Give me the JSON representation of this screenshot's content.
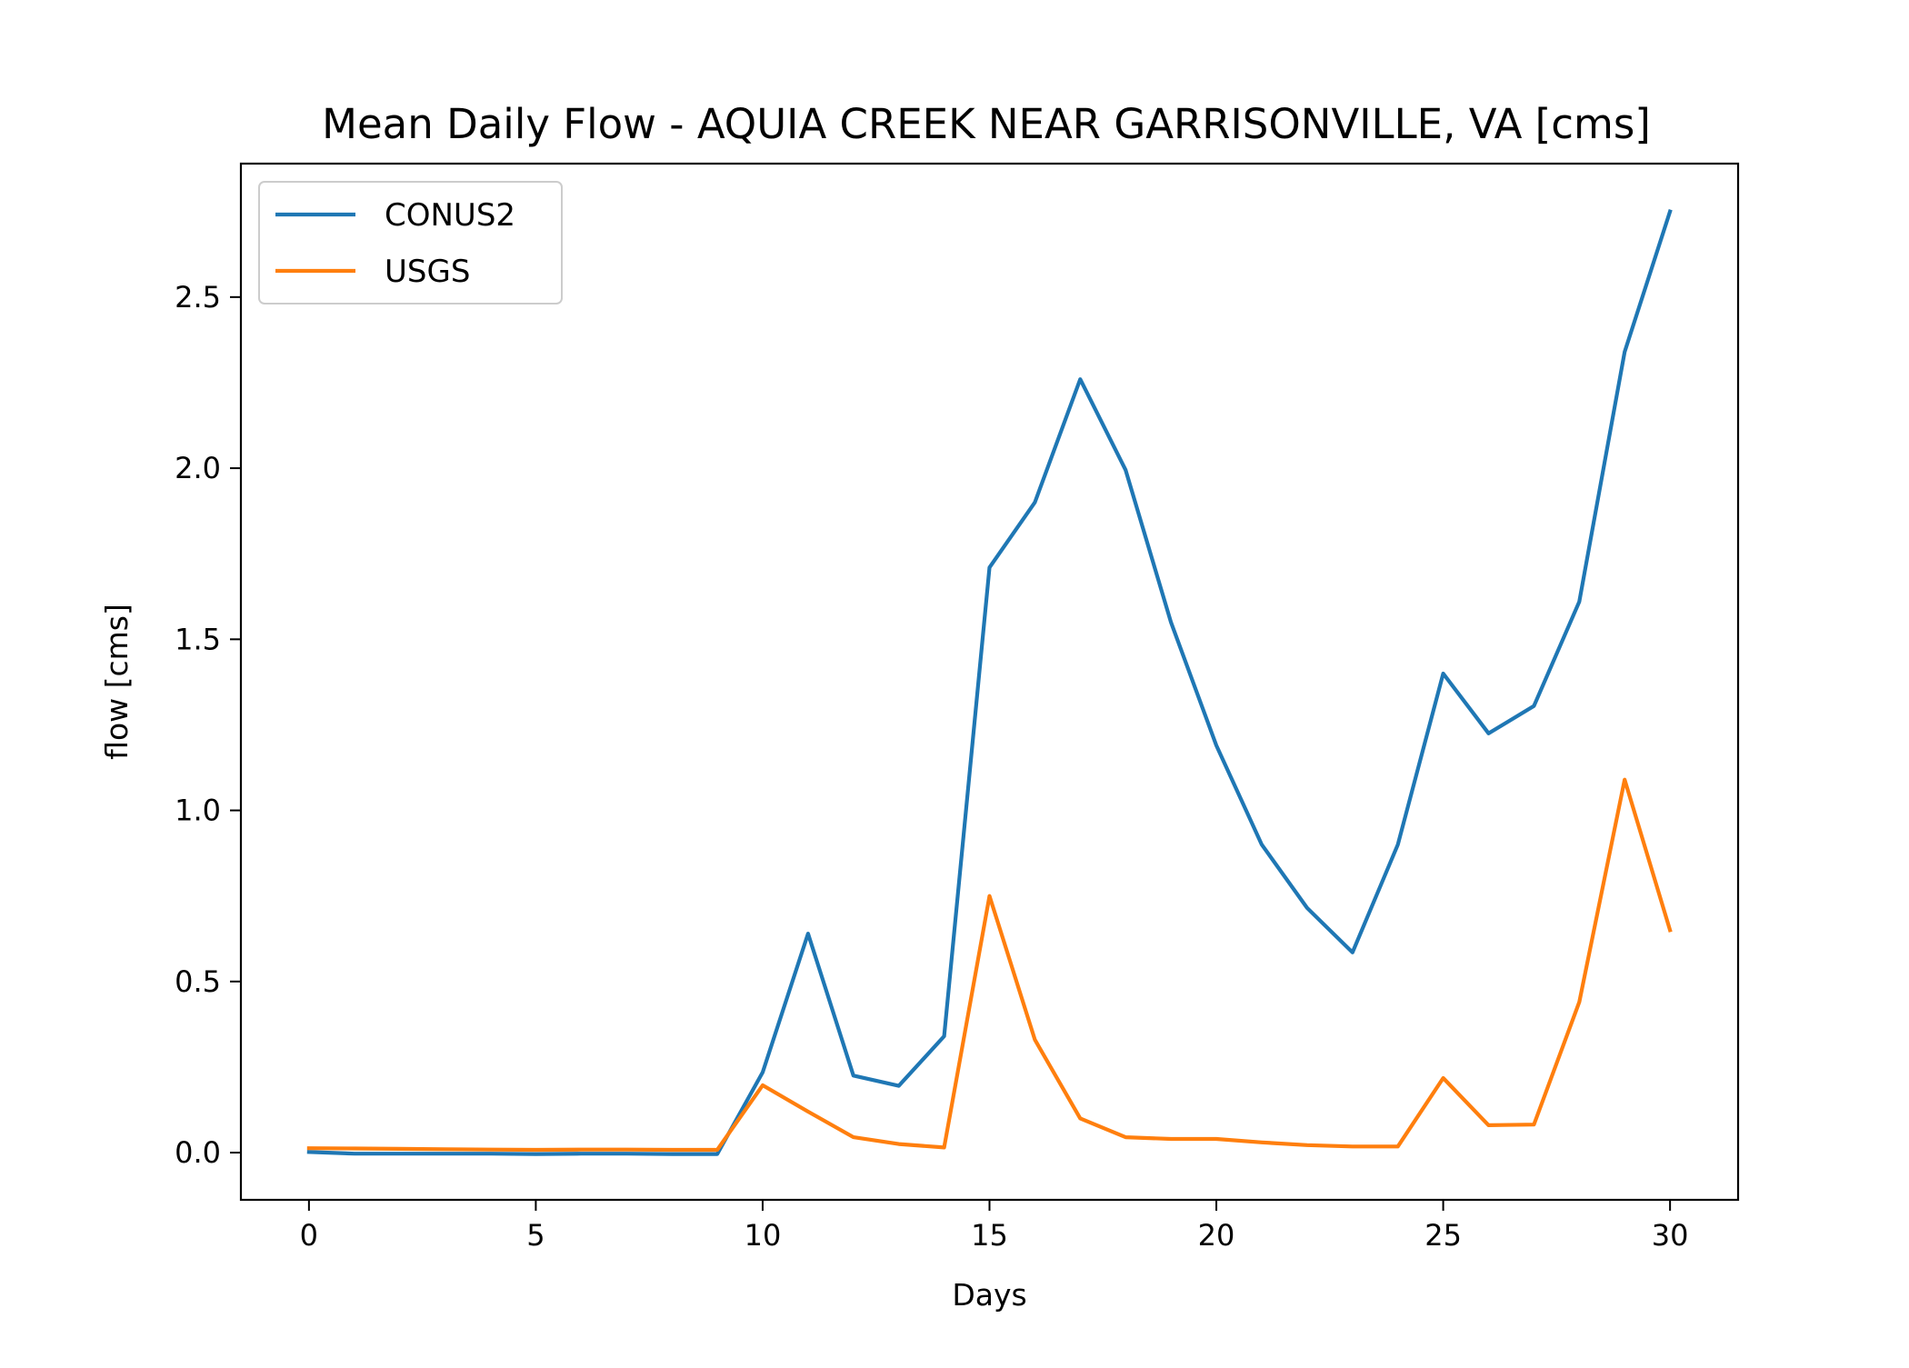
{
  "chart_data": {
    "type": "line",
    "title": "Mean Daily Flow - AQUIA CREEK NEAR GARRISONVILLE, VA [cms]",
    "xlabel": "Days",
    "ylabel": "flow [cms]",
    "xlim": [
      -1.5,
      31.5
    ],
    "ylim": [
      -0.138,
      2.89
    ],
    "xticks": [
      0,
      5,
      10,
      15,
      20,
      25,
      30
    ],
    "xtick_labels": [
      "0",
      "5",
      "10",
      "15",
      "20",
      "25",
      "30"
    ],
    "yticks": [
      0.0,
      0.5,
      1.0,
      1.5,
      2.0,
      2.5
    ],
    "ytick_labels": [
      "0.0",
      "0.5",
      "1.0",
      "1.5",
      "2.0",
      "2.5"
    ],
    "grid": false,
    "legend_position": "upper-left",
    "x": [
      0,
      1,
      2,
      3,
      4,
      5,
      6,
      7,
      8,
      9,
      10,
      11,
      12,
      13,
      14,
      15,
      16,
      17,
      18,
      19,
      20,
      21,
      22,
      23,
      24,
      25,
      26,
      27,
      28,
      29,
      30
    ],
    "series": [
      {
        "name": "CONUS2",
        "color": "#1f77b4",
        "values": [
          0.002,
          -0.003,
          -0.003,
          -0.003,
          -0.003,
          -0.004,
          -0.003,
          -0.003,
          -0.004,
          -0.004,
          0.235,
          0.64,
          0.225,
          0.195,
          0.34,
          1.71,
          1.9,
          2.26,
          1.995,
          1.55,
          1.19,
          0.9,
          0.715,
          0.585,
          0.9,
          1.4,
          1.225,
          1.305,
          1.61,
          2.34,
          2.75
        ]
      },
      {
        "name": "USGS",
        "color": "#ff7f0e",
        "values": [
          0.013,
          0.012,
          0.011,
          0.01,
          0.009,
          0.008,
          0.009,
          0.009,
          0.008,
          0.008,
          0.197,
          0.12,
          0.045,
          0.025,
          0.015,
          0.75,
          0.33,
          0.1,
          0.045,
          0.04,
          0.04,
          0.03,
          0.022,
          0.018,
          0.018,
          0.218,
          0.08,
          0.082,
          0.44,
          1.09,
          0.65
        ]
      }
    ]
  }
}
